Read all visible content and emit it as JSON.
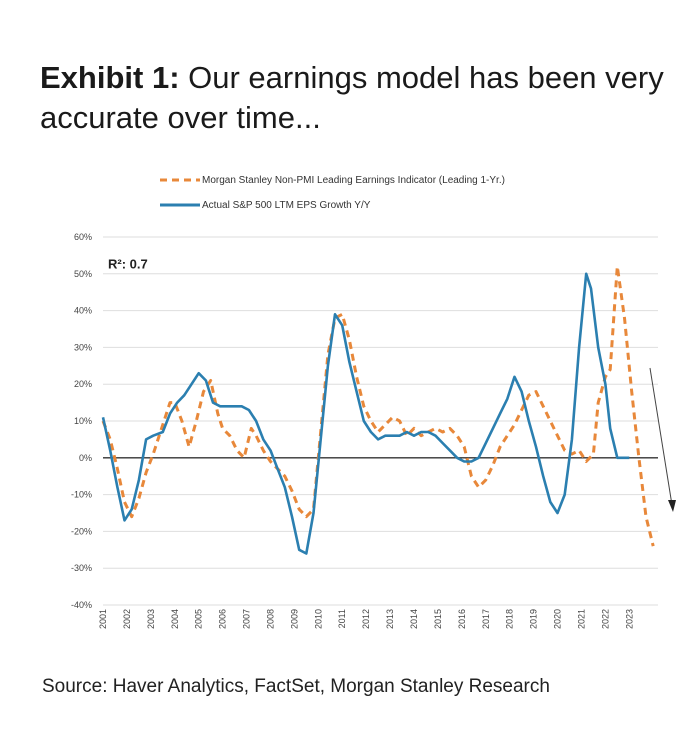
{
  "title": {
    "bold": "Exhibit 1:",
    "rest": " Our earnings model has been very accurate over time..."
  },
  "source": "Source: Haver Analytics, FactSet, Morgan Stanley Research",
  "chart_data": {
    "type": "line",
    "annotation": "R²: 0.7",
    "ylim": [
      -40,
      60
    ],
    "yticks": [
      60,
      50,
      40,
      30,
      20,
      10,
      0,
      -10,
      -20,
      -30,
      -40
    ],
    "ytick_labels": [
      "60%",
      "50%",
      "40%",
      "30%",
      "20%",
      "10%",
      "0%",
      "-10%",
      "-20%",
      "-30%",
      "-40%"
    ],
    "xlim": [
      2001,
      2024.2
    ],
    "xticks": [
      2001,
      2002,
      2003,
      2004,
      2005,
      2006,
      2007,
      2008,
      2009,
      2010,
      2011,
      2012,
      2013,
      2014,
      2015,
      2016,
      2017,
      2018,
      2019,
      2020,
      2021,
      2022,
      2023
    ],
    "xtick_labels": [
      "2001",
      "2002",
      "2003",
      "2004",
      "2005",
      "2006",
      "2007",
      "2008",
      "2009",
      "2010",
      "2011",
      "2012",
      "2013",
      "2014",
      "2015",
      "2016",
      "2017",
      "2018",
      "2019",
      "2020",
      "2021",
      "2022",
      "2023"
    ],
    "grid": true,
    "legend_position": "top",
    "series": [
      {
        "name": "Morgan Stanley Non-PMI Leading Earnings Indicator (Leading 1-Yr.)",
        "style": "dashed",
        "color": "#e8883a",
        "x": [
          2001.0,
          2001.3,
          2001.6,
          2001.9,
          2002.2,
          2002.5,
          2002.8,
          2003.1,
          2003.5,
          2003.8,
          2004.0,
          2004.3,
          2004.6,
          2004.9,
          2005.2,
          2005.5,
          2005.8,
          2006.0,
          2006.3,
          2006.6,
          2006.9,
          2007.2,
          2007.4,
          2007.7,
          2008.0,
          2008.3,
          2008.6,
          2008.9,
          2009.2,
          2009.5,
          2009.8,
          2010.1,
          2010.4,
          2010.7,
          2011.0,
          2011.3,
          2011.6,
          2011.9,
          2012.2,
          2012.5,
          2012.8,
          2013.1,
          2013.4,
          2013.7,
          2014.0,
          2014.3,
          2014.6,
          2014.9,
          2015.2,
          2015.5,
          2015.8,
          2016.1,
          2016.4,
          2016.7,
          2017.0,
          2017.3,
          2017.6,
          2017.9,
          2018.2,
          2018.5,
          2018.8,
          2019.1,
          2019.4,
          2019.7,
          2020.0,
          2020.3,
          2020.6,
          2020.9,
          2021.2,
          2021.5,
          2021.7,
          2022.0,
          2022.2,
          2022.5,
          2022.8,
          2023.1,
          2023.4,
          2023.7,
          2024.0
        ],
        "values": [
          10,
          5,
          -3,
          -12,
          -16,
          -11,
          -4,
          1,
          9,
          15,
          15,
          10,
          3,
          10,
          18,
          21,
          12,
          8,
          6,
          2,
          0,
          8,
          6,
          2,
          -1,
          -3,
          -5,
          -9,
          -14,
          -16,
          -14,
          7,
          28,
          38,
          39,
          32,
          22,
          14,
          10,
          7,
          9,
          11,
          10,
          6,
          8,
          6,
          7,
          8,
          7,
          8,
          6,
          3,
          -5,
          -8,
          -6,
          -2,
          3,
          6,
          9,
          13,
          17,
          18,
          14,
          10,
          6,
          2,
          1,
          2,
          -1,
          1,
          15,
          22,
          24,
          52,
          38,
          18,
          0,
          -16,
          -24
        ]
      },
      {
        "name": "Actual S&P 500 LTM EPS Growth Y/Y",
        "style": "solid",
        "color": "#2b7fb0",
        "x": [
          2001.0,
          2001.3,
          2001.6,
          2001.9,
          2002.2,
          2002.5,
          2002.8,
          2003.1,
          2003.5,
          2003.8,
          2004.1,
          2004.4,
          2004.7,
          2005.0,
          2005.3,
          2005.6,
          2005.9,
          2006.2,
          2006.5,
          2006.8,
          2007.1,
          2007.4,
          2007.7,
          2008.0,
          2008.3,
          2008.6,
          2008.9,
          2009.2,
          2009.5,
          2009.8,
          2010.1,
          2010.4,
          2010.7,
          2011.0,
          2011.3,
          2011.6,
          2011.9,
          2012.2,
          2012.5,
          2012.8,
          2013.1,
          2013.4,
          2013.7,
          2014.0,
          2014.3,
          2014.6,
          2014.9,
          2015.2,
          2015.5,
          2015.8,
          2016.1,
          2016.4,
          2016.7,
          2017.0,
          2017.3,
          2017.6,
          2017.9,
          2018.2,
          2018.5,
          2018.8,
          2019.1,
          2019.4,
          2019.7,
          2020.0,
          2020.3,
          2020.6,
          2020.9,
          2021.2,
          2021.4,
          2021.7,
          2022.0,
          2022.2,
          2022.5,
          2022.8,
          2023.0
        ],
        "values": [
          11,
          2,
          -8,
          -17,
          -14,
          -6,
          5,
          6,
          7,
          12,
          15,
          17,
          20,
          23,
          21,
          15,
          14,
          14,
          14,
          14,
          13,
          10,
          5,
          2,
          -3,
          -8,
          -16,
          -25,
          -26,
          -15,
          5,
          25,
          39,
          36,
          26,
          18,
          10,
          7,
          5,
          6,
          6,
          6,
          7,
          6,
          7,
          7,
          6,
          4,
          2,
          0,
          -1,
          -1,
          0,
          4,
          8,
          12,
          16,
          22,
          18,
          10,
          3,
          -5,
          -12,
          -15,
          -10,
          5,
          30,
          50,
          46,
          30,
          20,
          8,
          0,
          0,
          0
        ]
      }
    ]
  }
}
